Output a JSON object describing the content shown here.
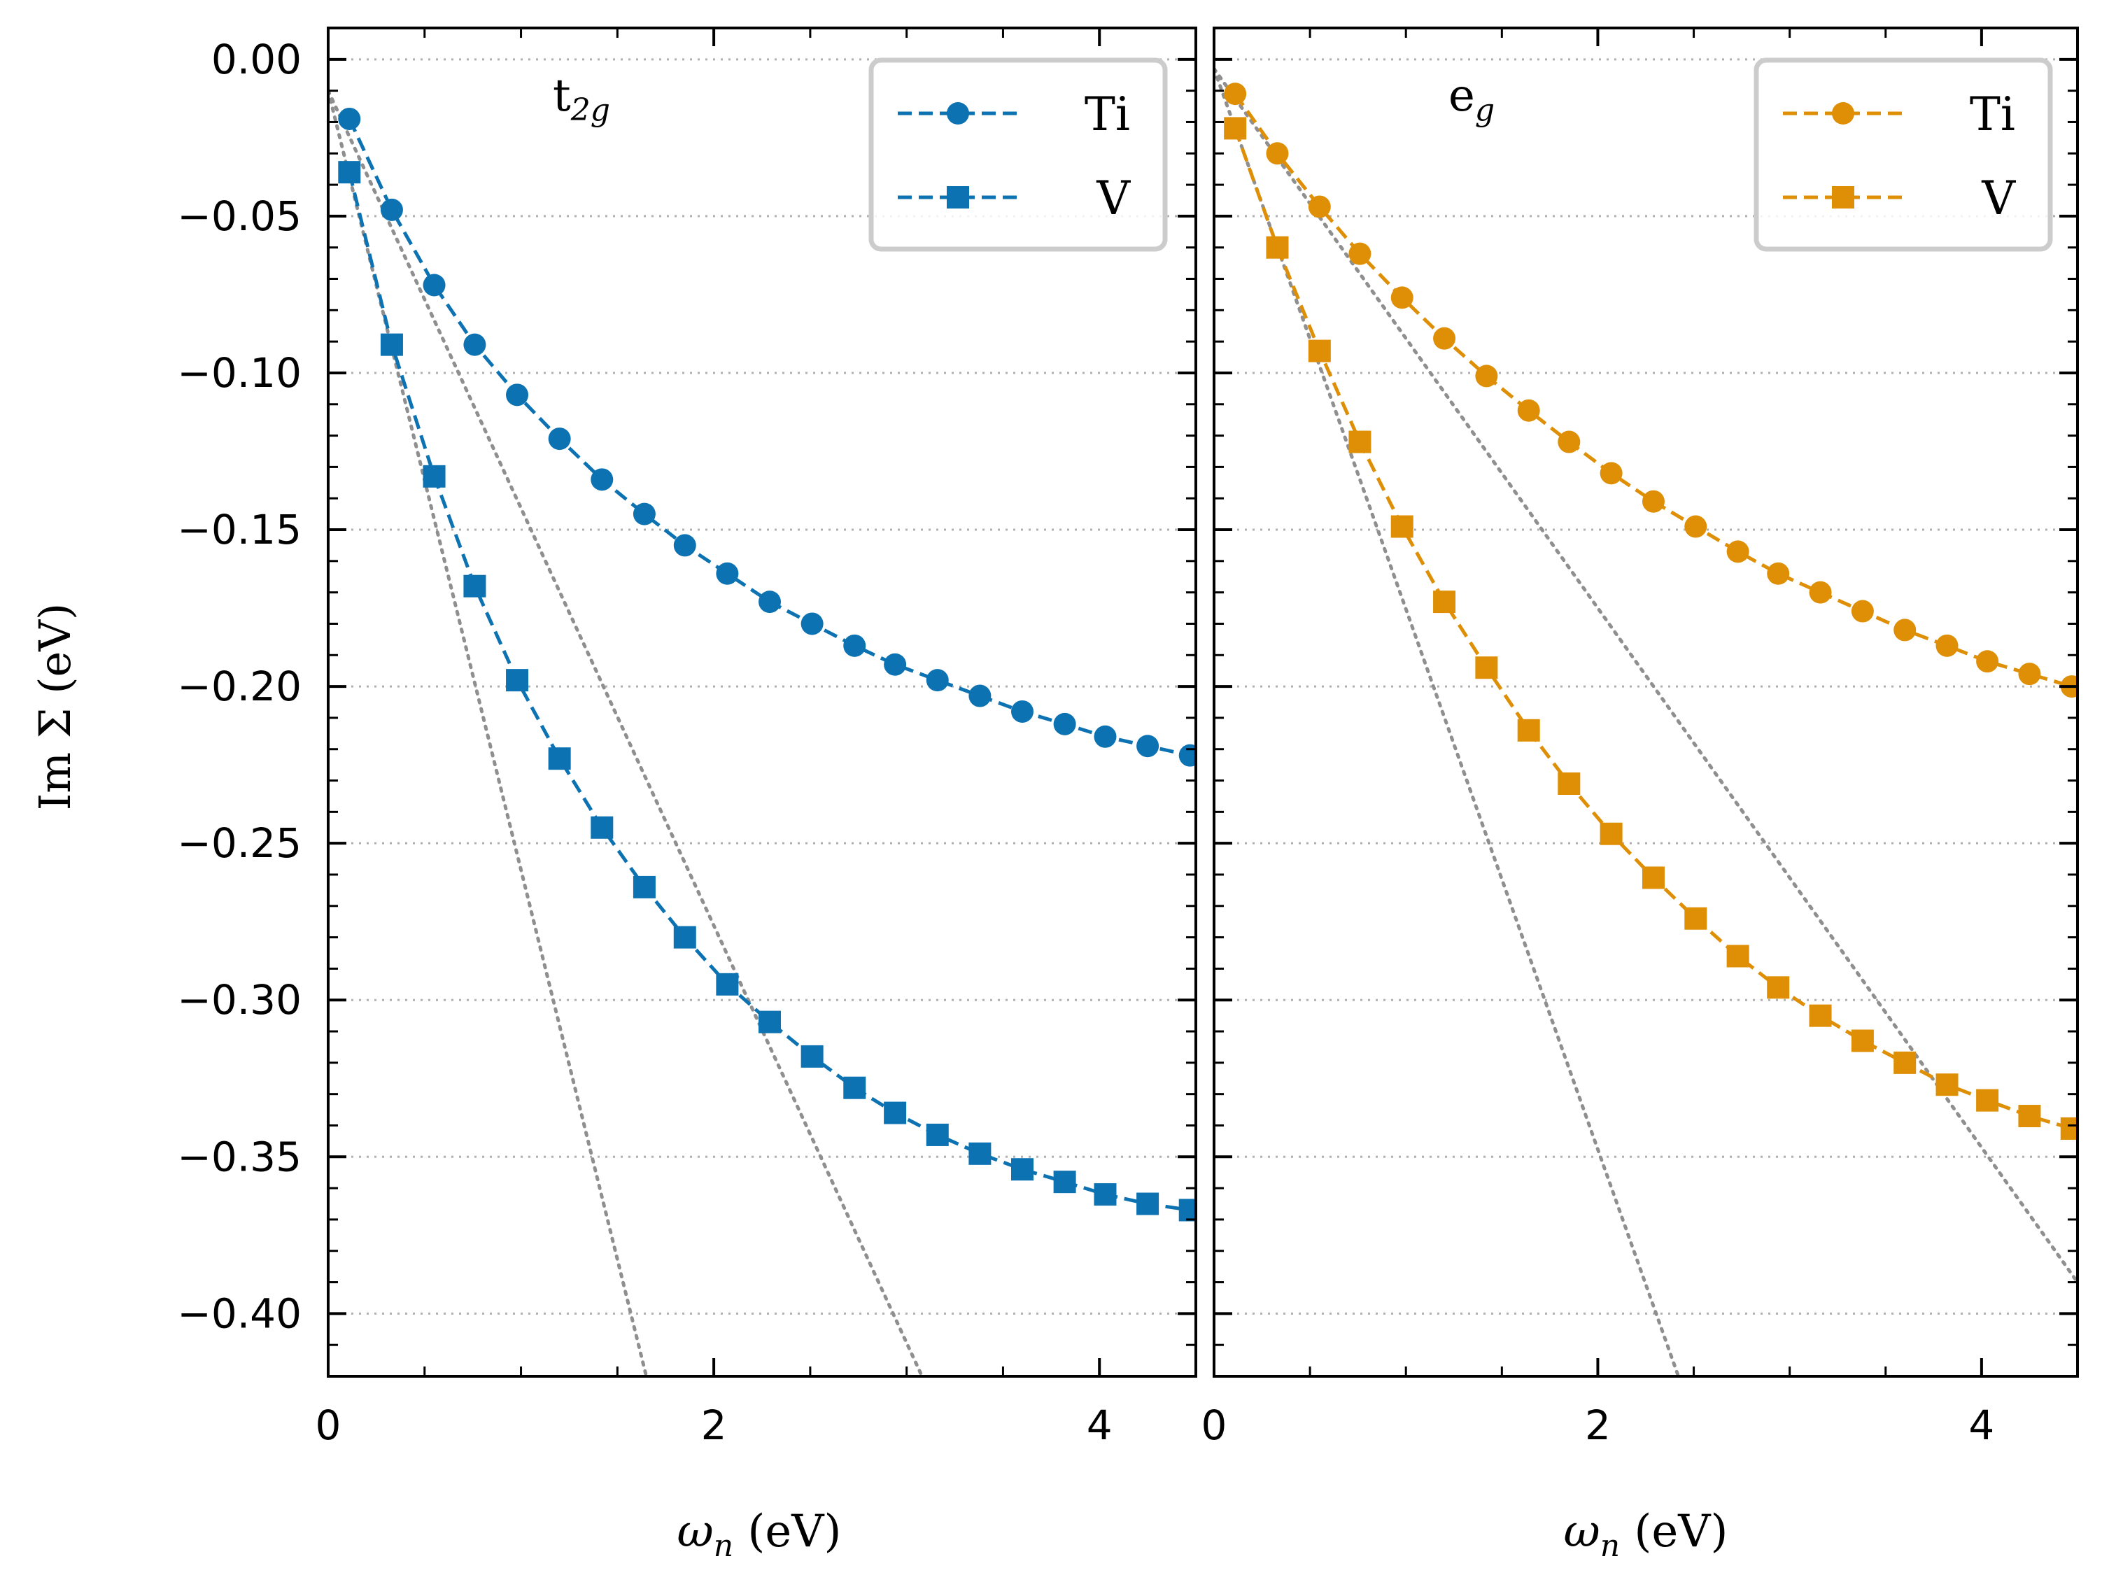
{
  "figure": {
    "ylabel": "Im Σ (eV)",
    "xlabel_symbol": "ω",
    "xlabel_sub": "n",
    "xlabel_unit": " (eV)"
  },
  "chart_data": [
    {
      "type": "line",
      "panel": "t2g",
      "annotation_main": "t",
      "annotation_sub": "2g",
      "x": [
        0.11,
        0.33,
        0.55,
        0.76,
        0.98,
        1.2,
        1.42,
        1.64,
        1.85,
        2.07,
        2.29,
        2.51,
        2.73,
        2.94,
        3.16,
        3.38,
        3.6,
        3.82,
        4.03,
        4.25,
        4.47
      ],
      "series": [
        {
          "name": "Ti",
          "marker": "circle",
          "color": "#0c72b2",
          "values": [
            -0.019,
            -0.048,
            -0.072,
            -0.091,
            -0.107,
            -0.121,
            -0.134,
            -0.145,
            -0.155,
            -0.164,
            -0.173,
            -0.18,
            -0.187,
            -0.193,
            -0.198,
            -0.203,
            -0.208,
            -0.212,
            -0.216,
            -0.219,
            -0.222
          ]
        },
        {
          "name": "V",
          "marker": "square",
          "color": "#0c72b2",
          "values": [
            -0.036,
            -0.091,
            -0.133,
            -0.168,
            -0.198,
            -0.223,
            -0.245,
            -0.264,
            -0.28,
            -0.295,
            -0.307,
            -0.318,
            -0.328,
            -0.336,
            -0.343,
            -0.349,
            -0.354,
            -0.358,
            -0.362,
            -0.365,
            -0.367
          ]
        }
      ],
      "fit_lines": [
        {
          "x0": 0.0,
          "y0": -0.01,
          "x1": 1.65,
          "y1": -0.42
        },
        {
          "x0": 0.0,
          "y0": -0.01,
          "x1": 3.08,
          "y1": -0.42
        }
      ],
      "xlim": [
        0,
        4.5
      ],
      "ylim": [
        -0.42,
        0.01
      ],
      "xticks": [
        0,
        2,
        4
      ],
      "yticks": [
        0.0,
        -0.05,
        -0.1,
        -0.15,
        -0.2,
        -0.25,
        -0.3,
        -0.35,
        -0.4
      ],
      "ytick_labels": [
        "0.00",
        "−0.05",
        "−0.10",
        "−0.15",
        "−0.20",
        "−0.25",
        "−0.30",
        "−0.35",
        "−0.40"
      ],
      "xtick_labels": [
        "0",
        "2",
        "4"
      ],
      "grid": "y-dotted",
      "legend": "top-right"
    },
    {
      "type": "line",
      "panel": "eg",
      "annotation_main": "e",
      "annotation_sub": "g",
      "x": [
        0.11,
        0.33,
        0.55,
        0.76,
        0.98,
        1.2,
        1.42,
        1.64,
        1.85,
        2.07,
        2.29,
        2.51,
        2.73,
        2.94,
        3.16,
        3.38,
        3.6,
        3.82,
        4.03,
        4.25,
        4.47
      ],
      "series": [
        {
          "name": "Ti",
          "marker": "circle",
          "color": "#de8f05",
          "values": [
            -0.011,
            -0.03,
            -0.047,
            -0.062,
            -0.076,
            -0.089,
            -0.101,
            -0.112,
            -0.122,
            -0.132,
            -0.141,
            -0.149,
            -0.157,
            -0.164,
            -0.17,
            -0.176,
            -0.182,
            -0.187,
            -0.192,
            -0.196,
            -0.2
          ]
        },
        {
          "name": "V",
          "marker": "square",
          "color": "#de8f05",
          "values": [
            -0.022,
            -0.06,
            -0.093,
            -0.122,
            -0.149,
            -0.173,
            -0.194,
            -0.214,
            -0.231,
            -0.247,
            -0.261,
            -0.274,
            -0.286,
            -0.296,
            -0.305,
            -0.313,
            -0.32,
            -0.327,
            -0.332,
            -0.337,
            -0.341
          ]
        }
      ],
      "fit_lines": [
        {
          "x0": 0.0,
          "y0": -0.003,
          "x1": 2.42,
          "y1": -0.42
        },
        {
          "x0": 0.0,
          "y0": -0.003,
          "x1": 4.5,
          "y1": -0.39
        }
      ],
      "xlim": [
        0,
        4.5
      ],
      "ylim": [
        -0.42,
        0.01
      ],
      "xticks": [
        0,
        2,
        4
      ],
      "yticks": [
        0.0,
        -0.05,
        -0.1,
        -0.15,
        -0.2,
        -0.25,
        -0.3,
        -0.35,
        -0.4
      ],
      "xtick_labels": [
        "0",
        "2",
        "4"
      ],
      "grid": "y-dotted",
      "legend": "top-right"
    }
  ]
}
